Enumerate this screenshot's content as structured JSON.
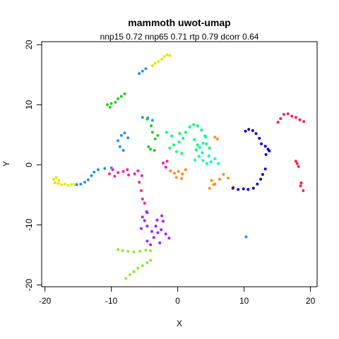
{
  "chart_data": {
    "type": "scatter",
    "title": "mammoth uwot-umap",
    "subtitle": "nnp15 0.72 nnp65 0.71 rtp 0.79 dcorr 0.64",
    "xlabel": "X",
    "ylabel": "Y",
    "xlim": [
      -20.5,
      21
    ],
    "ylim": [
      -20.3,
      20.5
    ],
    "xticks": [
      -20,
      -10,
      0,
      10,
      20
    ],
    "yticks": [
      -20,
      -10,
      0,
      10,
      20
    ],
    "grid": false,
    "legend": "none",
    "groups": [
      {
        "color": "#e6e600",
        "points": [
          [
            -18.5,
            -3.0
          ],
          [
            -18.0,
            -3.1
          ],
          [
            -17.5,
            -3.3
          ],
          [
            -17.0,
            -3.2
          ],
          [
            -16.5,
            -3.4
          ],
          [
            -16.0,
            -3.3
          ],
          [
            -15.5,
            -3.3
          ],
          [
            -18.7,
            -2.4
          ],
          [
            -18.3,
            -2.1
          ],
          [
            -17.9,
            -2.6
          ],
          [
            -1.6,
            18.3
          ],
          [
            -2.0,
            18.0
          ],
          [
            -2.4,
            17.6
          ],
          [
            -2.9,
            17.2
          ],
          [
            -3.4,
            16.9
          ],
          [
            -3.8,
            16.5
          ],
          [
            -1.2,
            18.2
          ]
        ]
      },
      {
        "color": "#1e90ff",
        "points": [
          [
            -15.2,
            -3.3
          ],
          [
            -14.6,
            -3.2
          ],
          [
            -14.0,
            -2.9
          ],
          [
            -13.5,
            -2.5
          ],
          [
            -13.0,
            -1.8
          ],
          [
            -12.6,
            -1.2
          ],
          [
            -12.0,
            -0.8
          ],
          [
            -11.0,
            -0.6
          ],
          [
            -10.0,
            -0.5
          ],
          [
            -5.8,
            15.2
          ],
          [
            -5.3,
            15.6
          ],
          [
            -4.8,
            16.0
          ],
          [
            -9.0,
            4.0
          ],
          [
            -8.5,
            4.9
          ],
          [
            -8.0,
            5.3
          ],
          [
            -8.7,
            3.0
          ],
          [
            -8.2,
            2.4
          ],
          [
            -5.3,
            7.9
          ],
          [
            -4.5,
            7.8
          ],
          [
            -3.8,
            7.4
          ],
          [
            -7.5,
            4.5
          ],
          [
            10.3,
            -12.0
          ]
        ]
      },
      {
        "color": "#22cc22",
        "points": [
          [
            -10.6,
            10.0
          ],
          [
            -10.0,
            10.2
          ],
          [
            -9.4,
            10.4
          ],
          [
            -9.0,
            11.0
          ],
          [
            -8.5,
            11.4
          ],
          [
            -8.0,
            11.8
          ],
          [
            -10.2,
            9.6
          ],
          [
            -4.6,
            7.6
          ],
          [
            -4.0,
            6.5
          ],
          [
            -3.8,
            5.4
          ],
          [
            -3.4,
            4.3
          ],
          [
            -3.0,
            4.9
          ],
          [
            -4.4,
            3.0
          ],
          [
            -4.1,
            2.6
          ],
          [
            -3.5,
            2.4
          ]
        ]
      },
      {
        "color": "#00ff66",
        "points": [
          [
            -1.2,
            2.8
          ],
          [
            -0.6,
            3.3
          ],
          [
            0.2,
            3.8
          ],
          [
            0.8,
            4.4
          ],
          [
            1.2,
            5.4
          ],
          [
            1.8,
            6.3
          ],
          [
            2.4,
            6.7
          ],
          [
            3.0,
            6.5
          ],
          [
            3.6,
            5.8
          ],
          [
            4.1,
            4.8
          ],
          [
            -0.2,
            2.2
          ],
          [
            0.6,
            1.9
          ],
          [
            -1.7,
            5.4
          ],
          [
            -0.9,
            4.8
          ],
          [
            0.3,
            5.2
          ],
          [
            2.5,
            4.2
          ],
          [
            3.0,
            3.3
          ],
          [
            2.8,
            2.5
          ],
          [
            3.7,
            2.0
          ],
          [
            4.3,
            3.5
          ],
          [
            4.8,
            2.8
          ]
        ]
      },
      {
        "color": "#00ffaa",
        "points": [
          [
            2.6,
            0.8
          ],
          [
            3.2,
            1.4
          ],
          [
            3.8,
            0.7
          ],
          [
            4.4,
            0.2
          ],
          [
            5.0,
            0.5
          ],
          [
            5.6,
            1.0
          ],
          [
            6.1,
            0.2
          ],
          [
            3.3,
            2.9
          ],
          [
            3.8,
            3.6
          ],
          [
            4.2,
            4.6
          ],
          [
            4.7,
            1.5
          ]
        ]
      },
      {
        "color": "#ff8c1a",
        "points": [
          [
            -1.1,
            -1.0
          ],
          [
            -0.5,
            -1.4
          ],
          [
            0.1,
            -1.1
          ],
          [
            0.7,
            -1.5
          ],
          [
            1.2,
            -0.8
          ],
          [
            -0.2,
            -2.1
          ],
          [
            0.6,
            -2.3
          ],
          [
            5.6,
            4.6
          ],
          [
            6.0,
            4.3
          ],
          [
            5.1,
            -2.6
          ],
          [
            5.6,
            -3.2
          ],
          [
            6.3,
            -2.4
          ],
          [
            6.9,
            -1.6
          ],
          [
            7.6,
            -2.2
          ],
          [
            8.4,
            -3.7
          ],
          [
            4.8,
            -3.9
          ],
          [
            5.4,
            -3.3
          ]
        ]
      },
      {
        "color": "#0000dd",
        "points": [
          [
            8.3,
            -3.9
          ],
          [
            9.1,
            -4.1
          ],
          [
            9.9,
            -4.0
          ],
          [
            10.6,
            -4.1
          ],
          [
            11.4,
            -3.9
          ],
          [
            12.0,
            -3.2
          ],
          [
            12.5,
            -2.4
          ],
          [
            12.8,
            -1.6
          ],
          [
            13.2,
            -0.7
          ],
          [
            10.2,
            5.6
          ],
          [
            10.7,
            5.9
          ],
          [
            11.3,
            5.7
          ],
          [
            11.8,
            5.2
          ],
          [
            12.3,
            4.4
          ],
          [
            12.6,
            3.5
          ],
          [
            13.2,
            3.1
          ],
          [
            13.6,
            2.6
          ],
          [
            13.3,
            1.7
          ],
          [
            13.8,
            2.3
          ]
        ]
      },
      {
        "color": "#ff1a4d",
        "points": [
          [
            15.5,
            7.7
          ],
          [
            16.0,
            8.4
          ],
          [
            16.6,
            8.5
          ],
          [
            17.2,
            8.1
          ],
          [
            17.8,
            7.9
          ],
          [
            18.4,
            7.5
          ],
          [
            19.0,
            7.2
          ],
          [
            15.1,
            7.1
          ],
          [
            18.0,
            0.2
          ],
          [
            18.2,
            -0.3
          ],
          [
            17.8,
            0.6
          ],
          [
            18.5,
            -3.5
          ],
          [
            18.9,
            -4.3
          ],
          [
            18.6,
            -3.0
          ]
        ]
      },
      {
        "color": "#ff1aa6",
        "points": [
          [
            -9.8,
            -0.8
          ],
          [
            -10.3,
            -1.5
          ],
          [
            -9.5,
            -1.9
          ],
          [
            -9.0,
            -1.3
          ],
          [
            -8.2,
            -1.1
          ],
          [
            -7.6,
            -0.8
          ],
          [
            -6.5,
            -1.5
          ],
          [
            -6.0,
            -1.0
          ],
          [
            -5.4,
            -1.8
          ],
          [
            -5.8,
            -2.9
          ],
          [
            -5.5,
            -4.3
          ],
          [
            -5.3,
            -5.7
          ],
          [
            -5.0,
            -6.4
          ],
          [
            -4.6,
            -8.0
          ],
          [
            -7.4,
            -1.7
          ],
          [
            -2.2,
            0.3
          ],
          [
            -1.8,
            -0.4
          ],
          [
            -1.6,
            0.6
          ]
        ]
      },
      {
        "color": "#aa1aff",
        "points": [
          [
            -4.7,
            -7.8
          ],
          [
            -5.3,
            -8.7
          ],
          [
            -5.0,
            -9.3
          ],
          [
            -4.6,
            -10.2
          ],
          [
            -3.9,
            -11.1
          ],
          [
            -3.6,
            -12.1
          ],
          [
            -3.0,
            -11.3
          ],
          [
            -2.5,
            -10.8
          ],
          [
            -2.2,
            -9.4
          ],
          [
            -2.4,
            -8.5
          ],
          [
            -3.1,
            -9.2
          ],
          [
            -1.8,
            -11.5
          ],
          [
            -1.3,
            -12.2
          ],
          [
            -5.5,
            -10.6
          ],
          [
            -4.6,
            -12.7
          ],
          [
            -4.1,
            -13.3
          ],
          [
            -2.7,
            -13.0
          ],
          [
            -3.3,
            -10.2
          ]
        ]
      },
      {
        "color": "#88ee22",
        "points": [
          [
            -9.0,
            -14.1
          ],
          [
            -8.3,
            -14.3
          ],
          [
            -7.5,
            -14.4
          ],
          [
            -6.6,
            -14.5
          ],
          [
            -5.7,
            -14.4
          ],
          [
            -4.8,
            -14.2
          ],
          [
            -4.1,
            -14.3
          ],
          [
            -7.8,
            -18.9
          ],
          [
            -7.2,
            -18.3
          ],
          [
            -6.6,
            -17.8
          ],
          [
            -6.0,
            -17.2
          ],
          [
            -5.3,
            -16.8
          ],
          [
            -4.6,
            -16.3
          ],
          [
            -4.1,
            -15.9
          ]
        ]
      }
    ]
  }
}
